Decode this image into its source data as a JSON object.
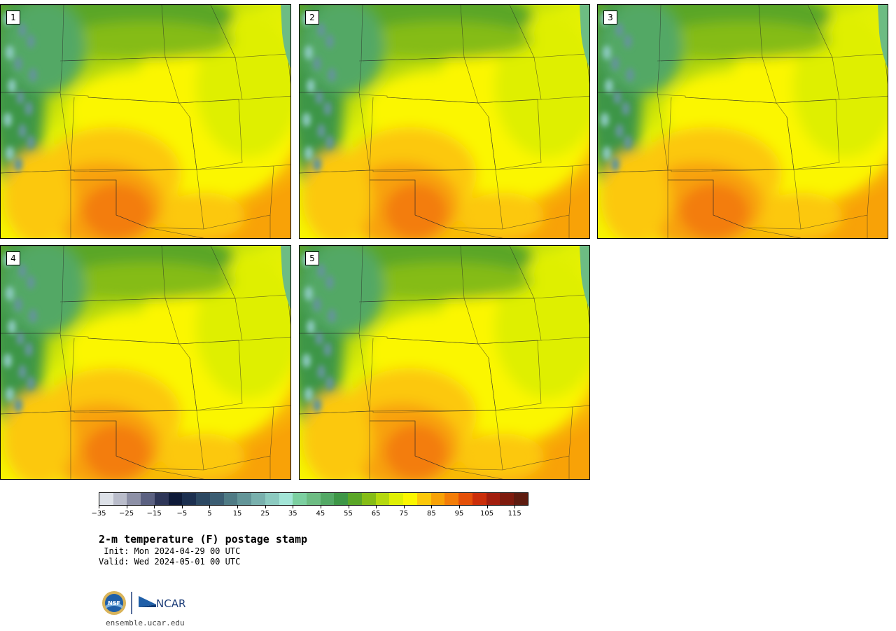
{
  "panels": [
    {
      "label": "1",
      "hot": [
        1.0,
        1.05,
        1.0
      ]
    },
    {
      "label": "2",
      "hot": [
        0.95,
        1.0,
        0.9
      ]
    },
    {
      "label": "3",
      "hot": [
        1.05,
        1.1,
        1.0
      ]
    },
    {
      "label": "4",
      "hot": [
        1.0,
        1.0,
        0.95
      ]
    },
    {
      "label": "5",
      "hot": [
        0.95,
        1.0,
        0.9
      ]
    }
  ],
  "colorbar": {
    "colors": [
      "#dde1e8",
      "#b9bcca",
      "#8d90a6",
      "#5b6181",
      "#2e3658",
      "#0e1a38",
      "#1c2f4f",
      "#2c4862",
      "#3b5d72",
      "#4f7b85",
      "#639598",
      "#79b0ad",
      "#8ccac0",
      "#a3e5d7",
      "#7ccfa0",
      "#6dbc83",
      "#53a865",
      "#3d9646",
      "#5aa627",
      "#85bc16",
      "#b4d80e",
      "#dfef04",
      "#fbf600",
      "#fcc80a",
      "#f8a207",
      "#f37d08",
      "#e45009",
      "#cb2e0a",
      "#a21e0e",
      "#7e1b0e",
      "#5e1c10"
    ],
    "ticks": [
      "−35",
      "−25",
      "−15",
      "−5",
      "5",
      "15",
      "25",
      "35",
      "45",
      "55",
      "65",
      "75",
      "85",
      "95",
      "105",
      "115"
    ],
    "min": -35,
    "max": 120
  },
  "title": "2-m temperature (F) postage stamp",
  "init_text": " Init: Mon 2024-04-29 00 UTC",
  "valid_text": "Valid: Wed 2024-05-01 00 UTC",
  "logo": {
    "nsf_text": "NSF",
    "ncar_text": "NCAR"
  },
  "site": "ensemble.ucar.edu"
}
